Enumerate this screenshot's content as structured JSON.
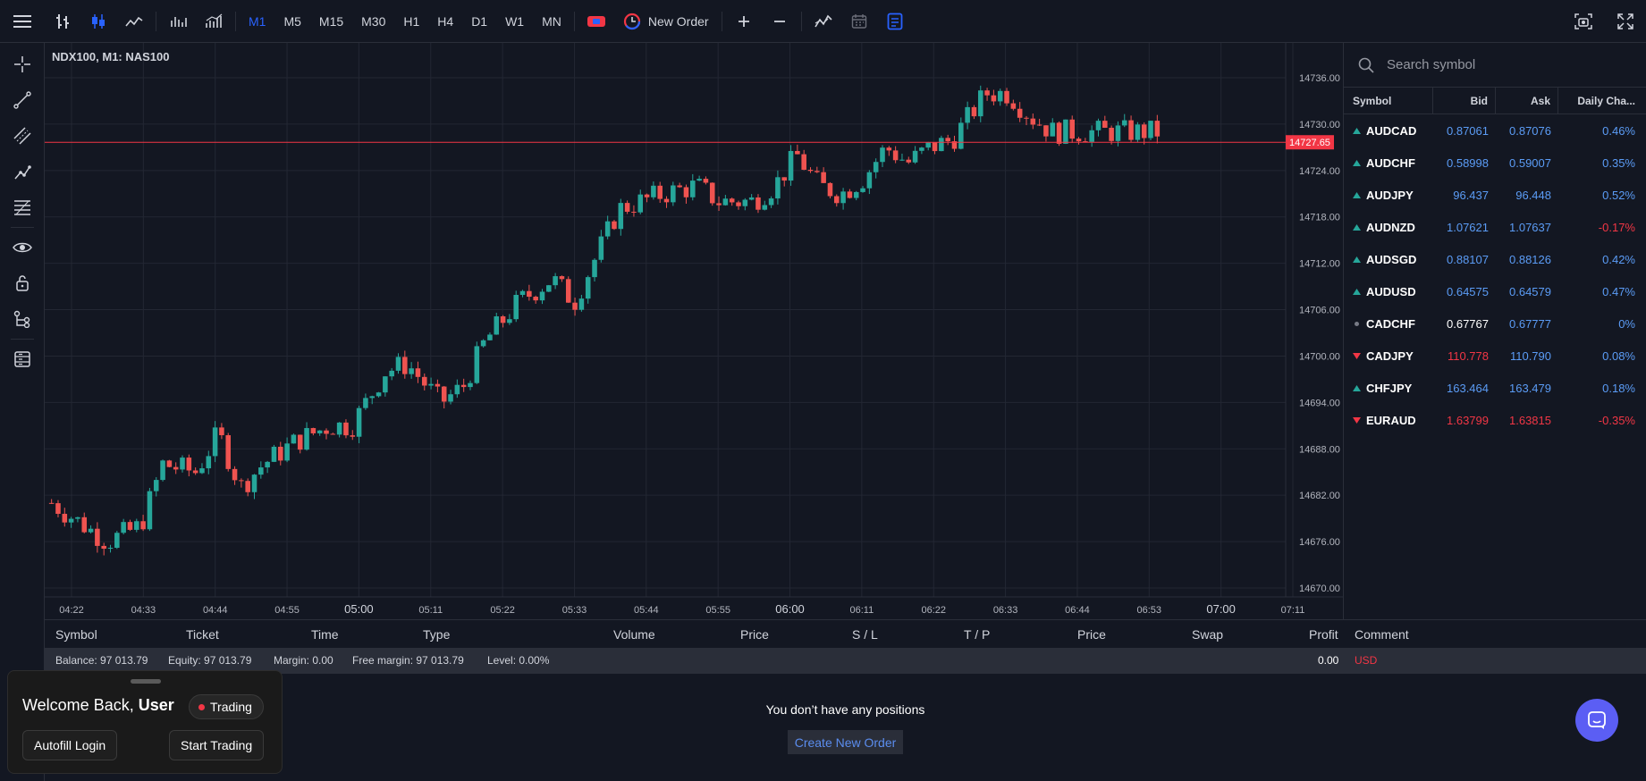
{
  "toolbar": {
    "timeframes": [
      "M1",
      "M5",
      "M15",
      "M30",
      "H1",
      "H4",
      "D1",
      "W1",
      "MN"
    ],
    "active_timeframe": "M1",
    "new_order_label": "New Order"
  },
  "chart": {
    "title": "NDX100, M1: NAS100",
    "current_price": "14727.65",
    "price_ticks": [
      "14736.00",
      "14730.00",
      "14724.00",
      "14718.00",
      "14712.00",
      "14706.00",
      "14700.00",
      "14694.00",
      "14688.00",
      "14682.00",
      "14676.00",
      "14670.00"
    ],
    "time_ticks": [
      "04:22",
      "04:33",
      "04:44",
      "04:55",
      "05:00",
      "05:11",
      "05:22",
      "05:33",
      "05:44",
      "05:55",
      "06:00",
      "06:11",
      "06:22",
      "06:33",
      "06:44",
      "06:53",
      "07:00",
      "07:11"
    ],
    "colors": {
      "up": "#26a69a",
      "down": "#ef5350",
      "price_line": "#f23645"
    }
  },
  "watchlist": {
    "search_placeholder": "Search symbol",
    "headers": {
      "symbol": "Symbol",
      "bid": "Bid",
      "ask": "Ask",
      "change": "Daily Cha..."
    },
    "rows": [
      {
        "symbol": "AUDCAD",
        "bid": "0.87061",
        "ask": "0.87076",
        "change": "0.46%",
        "dir": "up",
        "bid_color": "#5b9cf6",
        "ask_color": "#5b9cf6",
        "chg_color": "#5b9cf6"
      },
      {
        "symbol": "AUDCHF",
        "bid": "0.58998",
        "ask": "0.59007",
        "change": "0.35%",
        "dir": "up",
        "bid_color": "#5b9cf6",
        "ask_color": "#5b9cf6",
        "chg_color": "#5b9cf6"
      },
      {
        "symbol": "AUDJPY",
        "bid": "96.437",
        "ask": "96.448",
        "change": "0.52%",
        "dir": "up",
        "bid_color": "#5b9cf6",
        "ask_color": "#5b9cf6",
        "chg_color": "#5b9cf6"
      },
      {
        "symbol": "AUDNZD",
        "bid": "1.07621",
        "ask": "1.07637",
        "change": "-0.17%",
        "dir": "up",
        "bid_color": "#5b9cf6",
        "ask_color": "#5b9cf6",
        "chg_color": "#f23645"
      },
      {
        "symbol": "AUDSGD",
        "bid": "0.88107",
        "ask": "0.88126",
        "change": "0.42%",
        "dir": "up",
        "bid_color": "#5b9cf6",
        "ask_color": "#5b9cf6",
        "chg_color": "#5b9cf6"
      },
      {
        "symbol": "AUDUSD",
        "bid": "0.64575",
        "ask": "0.64579",
        "change": "0.47%",
        "dir": "up",
        "bid_color": "#5b9cf6",
        "ask_color": "#5b9cf6",
        "chg_color": "#5b9cf6"
      },
      {
        "symbol": "CADCHF",
        "bid": "0.67767",
        "ask": "0.67777",
        "change": "0%",
        "dir": "flat",
        "bid_color": "#ffffff",
        "ask_color": "#5b9cf6",
        "chg_color": "#5b9cf6"
      },
      {
        "symbol": "CADJPY",
        "bid": "110.778",
        "ask": "110.790",
        "change": "0.08%",
        "dir": "down",
        "bid_color": "#f23645",
        "ask_color": "#5b9cf6",
        "chg_color": "#5b9cf6"
      },
      {
        "symbol": "CHFJPY",
        "bid": "163.464",
        "ask": "163.479",
        "change": "0.18%",
        "dir": "up",
        "bid_color": "#5b9cf6",
        "ask_color": "#5b9cf6",
        "chg_color": "#5b9cf6"
      },
      {
        "symbol": "EURAUD",
        "bid": "1.63799",
        "ask": "1.63815",
        "change": "-0.35%",
        "dir": "down",
        "bid_color": "#f23645",
        "ask_color": "#f23645",
        "chg_color": "#f23645"
      }
    ]
  },
  "positions": {
    "headers": [
      "Symbol",
      "Ticket",
      "Time",
      "Type",
      "Volume",
      "Price",
      "S / L",
      "T / P",
      "Price",
      "Swap",
      "Profit",
      "Comment"
    ],
    "balance": "Balance: 97 013.79",
    "equity": "Equity: 97 013.79",
    "margin": "Margin: 0.00",
    "free_margin": "Free margin: 97 013.79",
    "level": "Level: 0.00%",
    "profit_total": "0.00",
    "currency": "USD",
    "empty_message": "You don’t have any positions",
    "create_label": "Create New Order"
  },
  "welcome": {
    "greeting": "Welcome Back, ",
    "user": "User",
    "status": "Trading",
    "autofill_label": "Autofill Login",
    "start_label": "Start Trading"
  }
}
